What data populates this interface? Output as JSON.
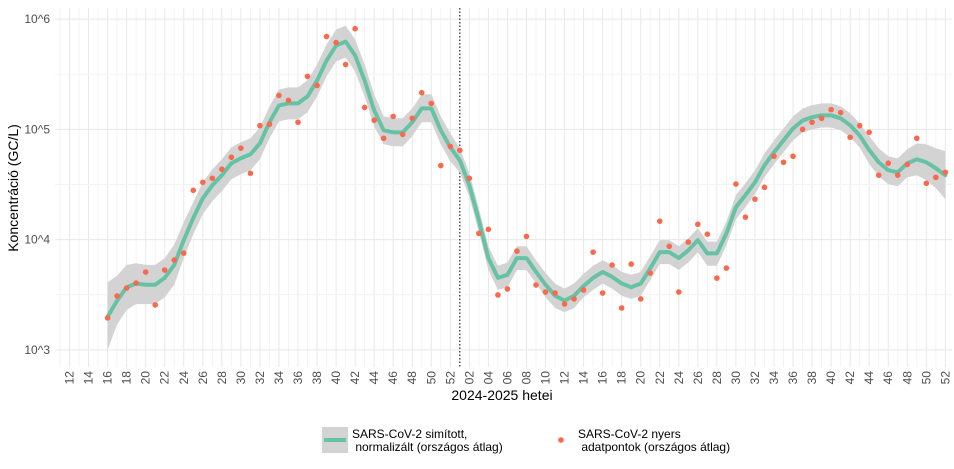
{
  "chart_data": {
    "type": "line",
    "x_label": "2024-2025 hetei",
    "y_label": "Koncentráció (GC/L)",
    "log_y": true,
    "grid": true,
    "band_color": "#d3d3d3",
    "ylim": [
      700,
      1260000
    ],
    "yticks": [
      {
        "value": 1000,
        "label": "10^3"
      },
      {
        "value": 10000,
        "label": "10^4"
      },
      {
        "value": 100000,
        "label": "10^5"
      },
      {
        "value": 1000000,
        "label": "10^6"
      }
    ],
    "categories": [
      null,
      "12",
      null,
      "14",
      null,
      "16",
      null,
      "18",
      null,
      "20",
      null,
      "22",
      null,
      "24",
      null,
      "26",
      null,
      "28",
      null,
      "30",
      null,
      "32",
      null,
      "34",
      null,
      "36",
      null,
      "38",
      null,
      "40",
      null,
      "42",
      null,
      "44",
      null,
      "46",
      null,
      "48",
      null,
      "50",
      null,
      "52",
      null,
      "02",
      null,
      "04",
      null,
      "06",
      null,
      "08",
      null,
      "10",
      null,
      "12",
      null,
      "14",
      null,
      "16",
      null,
      "18",
      null,
      "20",
      null,
      "22",
      null,
      "24",
      null,
      "26",
      null,
      "28",
      null,
      "30",
      null,
      "32",
      null,
      "34",
      null,
      "36",
      null,
      "38",
      null,
      "40",
      null,
      "42",
      null,
      "44",
      null,
      "46",
      null,
      "48",
      null,
      "50",
      null,
      "52"
    ],
    "series": [
      {
        "name": "SARS-CoV-2 simított,\n normalizált (országos átlag)",
        "type": "line",
        "color": "#66c2a5",
        "values": [
          null,
          null,
          null,
          null,
          null,
          2000,
          2800,
          3700,
          4000,
          3900,
          3900,
          4500,
          5900,
          9900,
          15700,
          23700,
          31100,
          38400,
          49300,
          54700,
          59400,
          74700,
          115600,
          164800,
          171800,
          172000,
          199000,
          277000,
          421000,
          575000,
          625000,
          468000,
          277000,
          148600,
          98000,
          94000,
          94000,
          116000,
          155000,
          155000,
          98000,
          68700,
          52400,
          31100,
          15000,
          6800,
          4500,
          4800,
          6800,
          6800,
          5100,
          3900,
          3100,
          2800,
          3100,
          3800,
          4500,
          5100,
          4600,
          4000,
          3700,
          4000,
          5500,
          7700,
          7700,
          6800,
          8000,
          9900,
          7500,
          7500,
          11400,
          19700,
          25300,
          33100,
          47200,
          61900,
          79500,
          102000,
          120000,
          129000,
          134000,
          134000,
          126000,
          109000,
          88000,
          65000,
          50300,
          42600,
          40800,
          49300,
          53500,
          50300,
          44400,
          38400
        ],
        "upper": [
          null,
          null,
          null,
          null,
          null,
          4100,
          4700,
          5900,
          6100,
          5900,
          5900,
          6800,
          9000,
          14400,
          21900,
          33100,
          43400,
          53600,
          68800,
          76400,
          82900,
          104000,
          161000,
          230000,
          240000,
          240000,
          278000,
          387000,
          588000,
          803000,
          872000,
          653000,
          387000,
          207000,
          131000,
          126000,
          126000,
          155000,
          208000,
          208000,
          131000,
          92000,
          67300,
          39900,
          19300,
          8700,
          5800,
          6200,
          8700,
          8700,
          6500,
          5000,
          4000,
          3600,
          4000,
          4900,
          5800,
          6500,
          5900,
          5100,
          4800,
          5100,
          7100,
          9900,
          9900,
          8700,
          10300,
          12700,
          9600,
          9600,
          14600,
          25300,
          32500,
          42500,
          60600,
          79500,
          102000,
          131000,
          154000,
          166000,
          172000,
          172000,
          162000,
          140000,
          113000,
          87000,
          67400,
          57000,
          54600,
          66000,
          74700,
          73200,
          67400,
          63300
        ],
        "lower": [
          null,
          null,
          null,
          null,
          null,
          1000,
          1700,
          2300,
          2600,
          2600,
          2600,
          3000,
          3900,
          6800,
          11200,
          17000,
          22300,
          27500,
          35300,
          39200,
          42600,
          53500,
          82800,
          118000,
          123000,
          123000,
          143000,
          198000,
          302000,
          412000,
          448000,
          335000,
          198000,
          106000,
          73200,
          70200,
          70200,
          86600,
          116000,
          116000,
          73200,
          51300,
          40800,
          24200,
          11700,
          5300,
          3500,
          3700,
          5300,
          5300,
          4000,
          3000,
          2400,
          2200,
          2400,
          3000,
          3500,
          4000,
          3600,
          3100,
          2900,
          3100,
          4300,
          6000,
          6000,
          5300,
          6200,
          7700,
          5800,
          5800,
          8900,
          15300,
          19700,
          25800,
          36800,
          48200,
          61900,
          79400,
          93500,
          100000,
          104000,
          104000,
          98100,
          84900,
          68500,
          48500,
          37600,
          31800,
          30500,
          36800,
          38300,
          34600,
          29300,
          23300
        ]
      },
      {
        "name": "SARS-CoV-2 nyers\n adatpontok (országos átlag)",
        "type": "scatter",
        "color": "#f8694d",
        "values": [
          null,
          null,
          null,
          null,
          null,
          1950,
          3080,
          3640,
          4040,
          5080,
          2560,
          5300,
          6530,
          7550,
          28000,
          33100,
          36000,
          43500,
          55900,
          67500,
          40000,
          108000,
          111000,
          203000,
          183000,
          116000,
          302000,
          250000,
          695000,
          613000,
          387000,
          818000,
          158000,
          121000,
          83000,
          131000,
          90000,
          126000,
          215000,
          172000,
          47000,
          70000,
          64600,
          36000,
          11400,
          12400,
          3150,
          3570,
          7870,
          10700,
          3880,
          3350,
          3280,
          2610,
          2900,
          3490,
          7700,
          3280,
          5880,
          2400,
          6000,
          2900,
          4980,
          14700,
          8700,
          3350,
          9500,
          13800,
          11200,
          4480,
          5520,
          31900,
          16000,
          23300,
          29800,
          57000,
          50300,
          57000,
          100000,
          116000,
          126000,
          151000,
          142000,
          84800,
          108000,
          94000,
          38400,
          49300,
          38400,
          48000,
          83000,
          32400,
          36700,
          40800
        ]
      }
    ]
  }
}
